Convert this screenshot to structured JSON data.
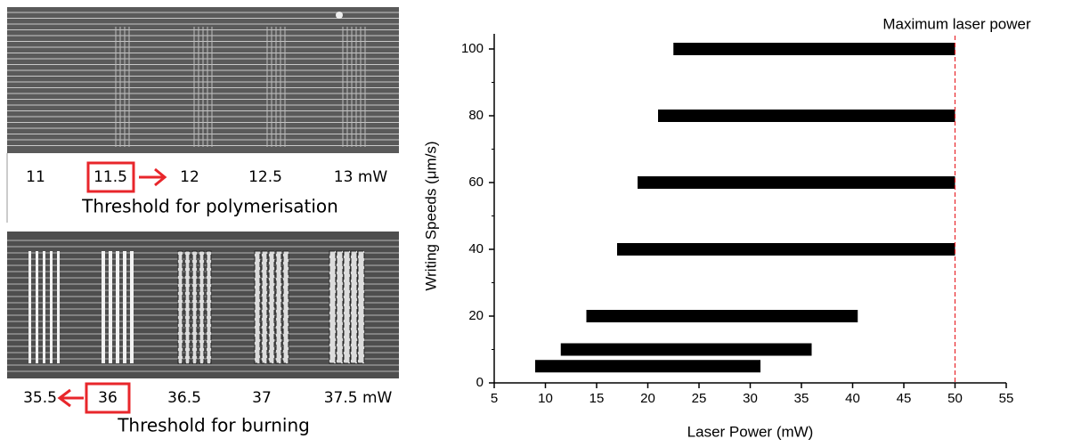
{
  "figure_panels": {
    "top": {
      "labels": [
        "11",
        "11.5",
        "12",
        "12.5",
        "13 mW"
      ],
      "caption": "Threshold for polymerisation"
    },
    "bottom": {
      "labels": [
        "35.5",
        "36",
        "36.5",
        "37",
        "37.5 mW"
      ],
      "caption": "Threshold for burning"
    }
  },
  "chart_data": {
    "type": "floating-bar",
    "x_label": "Laser Power (mW)",
    "y_label": "Writing Speeds (μm/s)",
    "annotation": "Maximum laser power",
    "annotation_x": 50,
    "annotation_color": "#e8262b",
    "y": [
      5,
      10,
      20,
      40,
      60,
      80,
      100
    ],
    "start": [
      9,
      11.5,
      14,
      17,
      19,
      21,
      22.5
    ],
    "end": [
      31,
      36,
      40.5,
      50,
      50,
      50,
      50
    ],
    "color": "#000000",
    "xlim": [
      5,
      55
    ],
    "xticks": [
      5,
      10,
      15,
      20,
      25,
      30,
      35,
      40,
      45,
      50,
      55
    ],
    "ylim": [
      0,
      100
    ],
    "yticks": [
      0,
      20,
      40,
      60,
      80,
      100
    ],
    "yminorticks": [
      10,
      30,
      50,
      70,
      90
    ]
  }
}
